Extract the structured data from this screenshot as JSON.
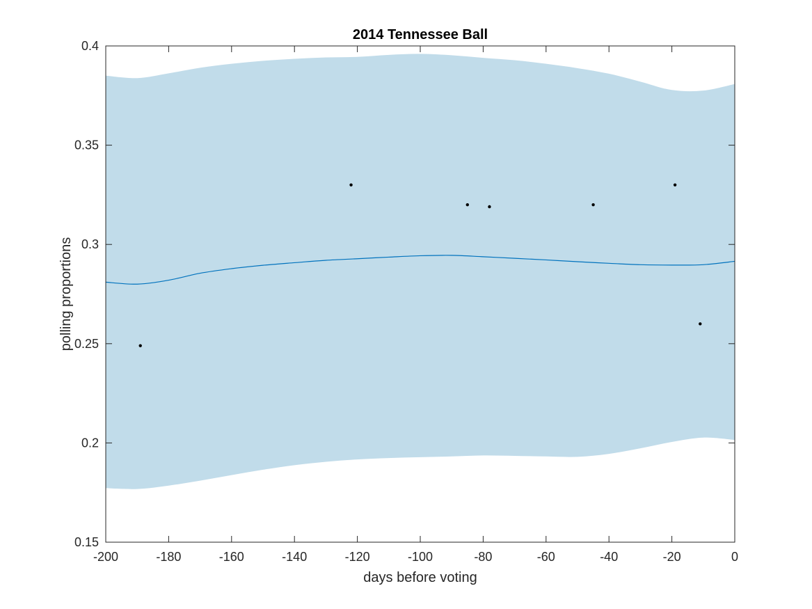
{
  "chart_data": {
    "type": "line",
    "title": "2014 Tennessee Ball",
    "xlabel": "days before voting",
    "ylabel": "polling proportions",
    "xlim": [
      -200,
      0
    ],
    "ylim": [
      0.15,
      0.4
    ],
    "xticks": [
      -200,
      -180,
      -160,
      -140,
      -120,
      -100,
      -80,
      -60,
      -40,
      -20,
      0
    ],
    "yticks": [
      0.15,
      0.2,
      0.25,
      0.3,
      0.35,
      0.4
    ],
    "xtick_labels": [
      "-200",
      "-180",
      "-160",
      "-140",
      "-120",
      "-100",
      "-80",
      "-60",
      "-40",
      "-20",
      "0"
    ],
    "ytick_labels": [
      "0.15",
      "0.2",
      "0.25",
      "0.3",
      "0.35",
      "0.4"
    ],
    "grid": false,
    "legend": "none",
    "colors": {
      "band": "#c1dcea",
      "line": "#0072bd",
      "points": "#000000",
      "axes": "#262626"
    },
    "mean_line": {
      "x": [
        -200,
        -190,
        -180,
        -170,
        -160,
        -150,
        -140,
        -130,
        -120,
        -110,
        -100,
        -90,
        -80,
        -70,
        -60,
        -50,
        -40,
        -30,
        -20,
        -10,
        0
      ],
      "y": [
        0.281,
        0.28,
        0.282,
        0.2855,
        0.2878,
        0.2895,
        0.2908,
        0.292,
        0.2928,
        0.2936,
        0.2943,
        0.2945,
        0.2938,
        0.293,
        0.2922,
        0.2913,
        0.2905,
        0.2898,
        0.2896,
        0.2898,
        0.2915
      ]
    },
    "band_upper": {
      "x": [
        -200,
        -190,
        -180,
        -170,
        -160,
        -150,
        -140,
        -130,
        -120,
        -110,
        -100,
        -90,
        -80,
        -70,
        -60,
        -50,
        -40,
        -30,
        -20,
        -10,
        0
      ],
      "y": [
        0.385,
        0.3838,
        0.3862,
        0.389,
        0.391,
        0.3925,
        0.3935,
        0.3942,
        0.3945,
        0.3955,
        0.396,
        0.3953,
        0.394,
        0.3928,
        0.391,
        0.3888,
        0.386,
        0.382,
        0.3778,
        0.3775,
        0.3808
      ]
    },
    "band_lower": {
      "x": [
        -200,
        -190,
        -180,
        -170,
        -160,
        -150,
        -140,
        -130,
        -120,
        -110,
        -100,
        -90,
        -80,
        -70,
        -60,
        -50,
        -40,
        -30,
        -20,
        -10,
        0
      ],
      "y": [
        0.1772,
        0.1768,
        0.1785,
        0.181,
        0.1838,
        0.1865,
        0.1888,
        0.1905,
        0.1917,
        0.1924,
        0.1928,
        0.1932,
        0.1937,
        0.1935,
        0.1932,
        0.193,
        0.1945,
        0.1973,
        0.2005,
        0.2027,
        0.2015
      ]
    },
    "points": {
      "x": [
        -189,
        -122,
        -85,
        -78,
        -45,
        -19,
        -11
      ],
      "y": [
        0.249,
        0.33,
        0.32,
        0.319,
        0.32,
        0.33,
        0.26
      ]
    }
  }
}
